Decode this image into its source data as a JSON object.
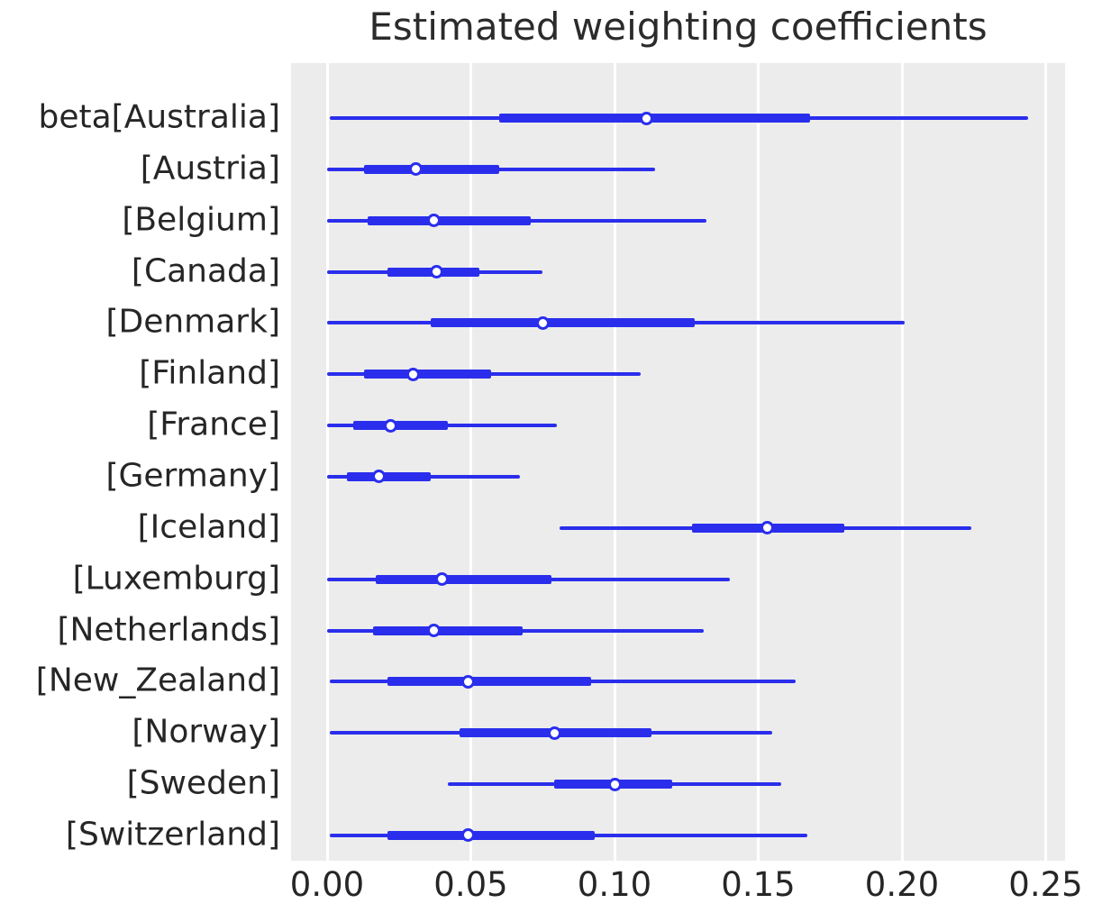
{
  "chart_data": {
    "type": "forest",
    "title": "Estimated weighting coefficients",
    "xlabel": "",
    "ylabel": "",
    "xlim": [
      -0.01254,
      0.25674
    ],
    "x_ticks": [
      0.0,
      0.05,
      0.1,
      0.15,
      0.2,
      0.25
    ],
    "x_tick_labels": [
      "0.00",
      "0.05",
      "0.10",
      "0.15",
      "0.20",
      "0.25"
    ],
    "grid": "vertical-white-gridlines",
    "legend_position": "none",
    "marker": "open-circle",
    "rows": [
      {
        "label": "beta[Australia]",
        "point": 0.111,
        "iqr": [
          0.06,
          0.168
        ],
        "hdi": [
          0.001,
          0.244
        ]
      },
      {
        "label": "[Austria]",
        "point": 0.031,
        "iqr": [
          0.013,
          0.06
        ],
        "hdi": [
          0.0,
          0.114
        ]
      },
      {
        "label": "[Belgium]",
        "point": 0.037,
        "iqr": [
          0.014,
          0.071
        ],
        "hdi": [
          0.0,
          0.132
        ]
      },
      {
        "label": "[Canada]",
        "point": 0.038,
        "iqr": [
          0.021,
          0.053
        ],
        "hdi": [
          0.0,
          0.075
        ]
      },
      {
        "label": "[Denmark]",
        "point": 0.075,
        "iqr": [
          0.036,
          0.128
        ],
        "hdi": [
          0.0,
          0.201
        ]
      },
      {
        "label": "[Finland]",
        "point": 0.03,
        "iqr": [
          0.013,
          0.057
        ],
        "hdi": [
          0.0,
          0.109
        ]
      },
      {
        "label": "[France]",
        "point": 0.022,
        "iqr": [
          0.009,
          0.042
        ],
        "hdi": [
          0.0,
          0.08
        ]
      },
      {
        "label": "[Germany]",
        "point": 0.018,
        "iqr": [
          0.007,
          0.036
        ],
        "hdi": [
          0.0,
          0.067
        ]
      },
      {
        "label": "[Iceland]",
        "point": 0.153,
        "iqr": [
          0.127,
          0.18
        ],
        "hdi": [
          0.081,
          0.224
        ]
      },
      {
        "label": "[Luxemburg]",
        "point": 0.04,
        "iqr": [
          0.017,
          0.078
        ],
        "hdi": [
          0.0,
          0.14
        ]
      },
      {
        "label": "[Netherlands]",
        "point": 0.037,
        "iqr": [
          0.016,
          0.068
        ],
        "hdi": [
          0.0,
          0.131
        ]
      },
      {
        "label": "[New_Zealand]",
        "point": 0.049,
        "iqr": [
          0.021,
          0.092
        ],
        "hdi": [
          0.001,
          0.163
        ]
      },
      {
        "label": "[Norway]",
        "point": 0.079,
        "iqr": [
          0.046,
          0.113
        ],
        "hdi": [
          0.001,
          0.155
        ]
      },
      {
        "label": "[Sweden]",
        "point": 0.1,
        "iqr": [
          0.079,
          0.12
        ],
        "hdi": [
          0.042,
          0.158
        ]
      },
      {
        "label": "[Switzerland]",
        "point": 0.049,
        "iqr": [
          0.021,
          0.093
        ],
        "hdi": [
          0.001,
          0.167
        ]
      }
    ],
    "colors": {
      "line": "#2a2eec",
      "plot_background": "#ececec",
      "gridline": "#ffffff",
      "tick_text": "#262626",
      "title_text": "#2b2b2b",
      "page_background": "#ffffff"
    }
  }
}
